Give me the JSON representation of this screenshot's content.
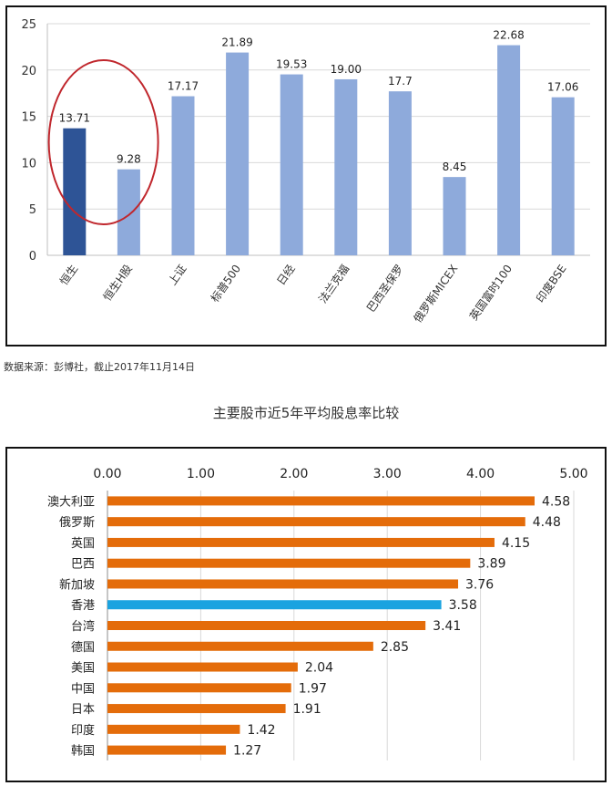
{
  "caption": "数据来源：彭博社，截止2017年11月14日",
  "chart_data": [
    {
      "type": "bar",
      "title": "",
      "xlabel": "",
      "ylabel": "",
      "ylim": [
        0,
        25
      ],
      "yticks": [
        "0",
        "5",
        "10",
        "15",
        "20",
        "25"
      ],
      "grid": true,
      "categories": [
        "恒生",
        "恒生H股",
        "上证",
        "标普500",
        "日经",
        "法兰克福",
        "巴西圣保罗",
        "俄罗斯MICEX",
        "英国富时100",
        "印度BSE"
      ],
      "values": [
        13.71,
        9.28,
        17.17,
        21.89,
        19.53,
        19.0,
        17.7,
        8.45,
        22.68,
        17.06
      ],
      "value_labels": [
        "13.71",
        "9.28",
        "17.17",
        "21.89",
        "19.53",
        "19.00",
        "17.7",
        "8.45",
        "22.68",
        "17.06"
      ],
      "colors": {
        "default": "#8eaadb",
        "highlight": "#2e5496",
        "circle": "#c0272d"
      },
      "highlight_index": 0
    },
    {
      "type": "bar",
      "orientation": "horizontal",
      "title": "主要股市近5年平均股息率比较",
      "xlabel": "",
      "ylabel": "",
      "xlim": [
        0,
        5
      ],
      "xticks": [
        "0.00",
        "1.00",
        "2.00",
        "3.00",
        "4.00",
        "5.00"
      ],
      "grid": true,
      "categories": [
        "澳大利亚",
        "俄罗斯",
        "英国",
        "巴西",
        "新加坡",
        "香港",
        "台湾",
        "德国",
        "美国",
        "中国",
        "日本",
        "印度",
        "韩国"
      ],
      "values": [
        4.58,
        4.48,
        4.15,
        3.89,
        3.76,
        3.58,
        3.41,
        2.85,
        2.04,
        1.97,
        1.91,
        1.42,
        1.27
      ],
      "value_labels": [
        "4.58",
        "4.48",
        "4.15",
        "3.89",
        "3.76",
        "3.58",
        "3.41",
        "2.85",
        "2.04",
        "1.97",
        "1.91",
        "1.42",
        "1.27"
      ],
      "colors": {
        "default": "#e46c0a",
        "highlight": "#1aa3e0"
      },
      "highlight_index": 5
    }
  ]
}
